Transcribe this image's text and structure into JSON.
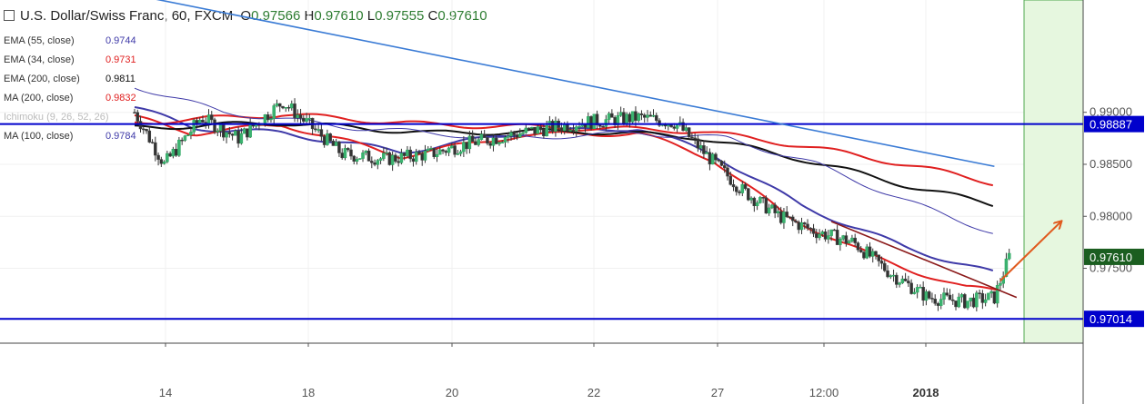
{
  "header": {
    "title": "U.S. Dollar/Swiss Franc, 60, FXCM",
    "open_key": "O",
    "open": "0.97566",
    "high_key": "H",
    "high": "0.97610",
    "low_key": "L",
    "low": "0.97555",
    "close_key": "C",
    "close": "0.97610"
  },
  "legend": [
    {
      "label": "EMA (55, close)",
      "value": "0.9744",
      "color": "#3f3aa8"
    },
    {
      "label": "EMA (34, close)",
      "value": "0.9731",
      "color": "#e02020"
    },
    {
      "label": "EMA (200, close)",
      "value": "0.9811",
      "color": "#111111"
    },
    {
      "label": "MA (200, close)",
      "value": "0.9832",
      "color": "#e02020"
    },
    {
      "label": "Ichimoku (9, 26, 52, 26)",
      "value": "",
      "color": "#bbbbbb"
    },
    {
      "label": "MA (100, close)",
      "value": "0.9784",
      "color": "#3f3aa8"
    }
  ],
  "chart_data": {
    "type": "candlestick",
    "ylim": [
      0.9678,
      1.0008
    ],
    "x_ticks": [
      "14",
      "18",
      "20",
      "22",
      "27",
      "12:00",
      "2018"
    ],
    "y_ticks": [
      "0.99000",
      "0.98500",
      "0.98000",
      "0.97500"
    ],
    "price_labels": [
      {
        "value": "0.98887",
        "price": 0.98887,
        "color": "#0000cc"
      },
      {
        "value": "0.97610",
        "price": 0.9761,
        "color": "#1b5e20"
      },
      {
        "value": "0.97014",
        "price": 0.97014,
        "color": "#0000cc"
      }
    ],
    "horizontal_levels": [
      0.98887,
      0.97014
    ],
    "series_close_anchors": [
      [
        0,
        0.99
      ],
      [
        20,
        0.985
      ],
      [
        45,
        0.9895
      ],
      [
        70,
        0.9875
      ],
      [
        100,
        0.991
      ],
      [
        120,
        0.9885
      ],
      [
        140,
        0.986
      ],
      [
        170,
        0.9855
      ],
      [
        200,
        0.986
      ],
      [
        225,
        0.987
      ],
      [
        260,
        0.988
      ],
      [
        300,
        0.989
      ],
      [
        340,
        0.9895
      ],
      [
        365,
        0.989
      ],
      [
        385,
        0.986
      ],
      [
        410,
        0.9825
      ],
      [
        435,
        0.98
      ],
      [
        460,
        0.9785
      ],
      [
        485,
        0.9775
      ],
      [
        510,
        0.9745
      ],
      [
        535,
        0.9722
      ],
      [
        560,
        0.9718
      ],
      [
        580,
        0.9722
      ],
      [
        590,
        0.9761
      ]
    ],
    "ma_lines": [
      {
        "name": "EMA (55, close)",
        "color": "#3f3aa8",
        "points": [
          [
            0,
            0.9905
          ],
          [
            40,
            0.9885
          ],
          [
            100,
            0.988
          ],
          [
            180,
            0.9862
          ],
          [
            260,
            0.988
          ],
          [
            340,
            0.9885
          ],
          [
            390,
            0.986
          ],
          [
            450,
            0.981
          ],
          [
            520,
            0.977
          ],
          [
            580,
            0.9745
          ]
        ]
      },
      {
        "name": "EMA (34, close)",
        "color": "#e02020",
        "points": [
          [
            0,
            0.9895
          ],
          [
            40,
            0.988
          ],
          [
            100,
            0.9888
          ],
          [
            180,
            0.9858
          ],
          [
            260,
            0.9878
          ],
          [
            340,
            0.988
          ],
          [
            390,
            0.9855
          ],
          [
            440,
            0.98
          ],
          [
            500,
            0.976
          ],
          [
            560,
            0.9731
          ],
          [
            582,
            0.9729
          ]
        ]
      },
      {
        "name": "EMA (200, close)",
        "color": "#111111",
        "points": [
          [
            0,
            0.9885
          ],
          [
            100,
            0.989
          ],
          [
            200,
            0.988
          ],
          [
            300,
            0.9882
          ],
          [
            380,
            0.9876
          ],
          [
            450,
            0.9855
          ],
          [
            520,
            0.983
          ],
          [
            580,
            0.9811
          ]
        ]
      },
      {
        "name": "MA (200, close)",
        "color": "#e02020",
        "points": [
          [
            0,
            0.989
          ],
          [
            100,
            0.9898
          ],
          [
            200,
            0.9888
          ],
          [
            300,
            0.9885
          ],
          [
            380,
            0.9882
          ],
          [
            450,
            0.9868
          ],
          [
            520,
            0.985
          ],
          [
            580,
            0.9832
          ]
        ]
      },
      {
        "name": "MA (100, close)",
        "color": "#3f3aa8",
        "points": [
          [
            0,
            0.9925
          ],
          [
            60,
            0.99
          ],
          [
            150,
            0.9885
          ],
          [
            250,
            0.9875
          ],
          [
            340,
            0.988
          ],
          [
            400,
            0.9875
          ],
          [
            460,
            0.985
          ],
          [
            520,
            0.9815
          ],
          [
            580,
            0.9784
          ]
        ]
      }
    ],
    "trendlines": [
      {
        "color": "#3a7bd5",
        "points": [
          [
            10,
            1.001
          ],
          [
            580,
            0.9848
          ]
        ]
      },
      {
        "color": "#8b1a1a",
        "points": [
          [
            470,
            0.9795
          ],
          [
            595,
            0.9722
          ]
        ]
      },
      {
        "color": "#e05a1e",
        "points": [
          [
            584,
            0.9738
          ],
          [
            625,
            0.9795
          ]
        ],
        "arrow": true
      }
    ]
  }
}
